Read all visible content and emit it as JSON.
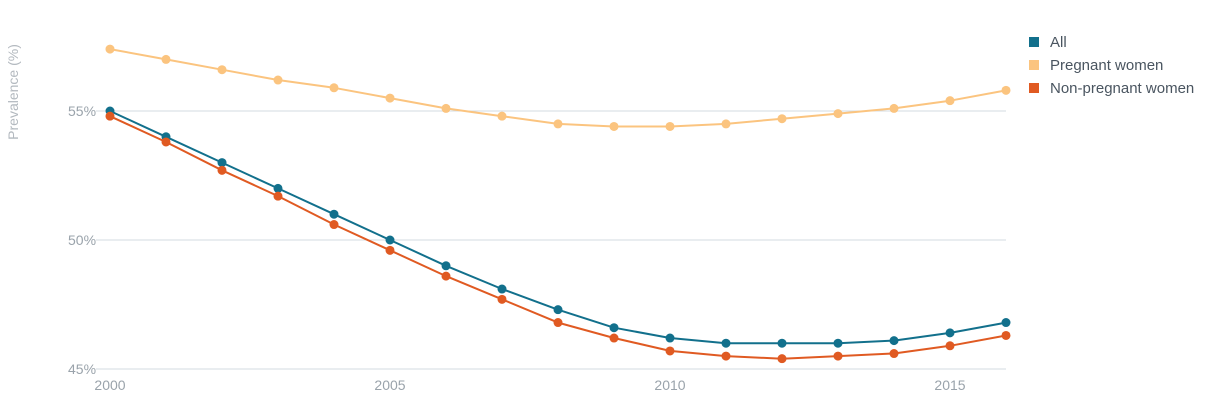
{
  "chart_data": {
    "type": "line",
    "title": "",
    "xlabel": "",
    "ylabel": "Prevalence (%)",
    "xlim": [
      2000,
      2016
    ],
    "ylim": [
      45,
      55
    ],
    "x": [
      2000,
      2001,
      2002,
      2003,
      2004,
      2005,
      2006,
      2007,
      2008,
      2009,
      2010,
      2011,
      2012,
      2013,
      2014,
      2015,
      2016
    ],
    "x_ticks": [
      2000,
      2005,
      2010,
      2015
    ],
    "x_tick_labels": [
      "2000",
      "2005",
      "2010",
      "2015"
    ],
    "y_ticks": [
      45,
      50,
      55
    ],
    "y_tick_labels": [
      "45%",
      "50%",
      "55%"
    ],
    "grid": "horizontal",
    "legend_position": "top-right",
    "series": [
      {
        "name": "All",
        "color": "#12708c",
        "values": [
          55.0,
          54.0,
          53.0,
          52.0,
          51.0,
          50.0,
          49.0,
          48.1,
          47.3,
          46.6,
          46.2,
          46.0,
          46.0,
          46.0,
          46.1,
          46.4,
          46.8
        ]
      },
      {
        "name": "Pregnant women",
        "color": "#fbc47f",
        "values": [
          57.4,
          57.0,
          56.6,
          56.2,
          55.9,
          55.5,
          55.1,
          54.8,
          54.5,
          54.4,
          54.4,
          54.5,
          54.7,
          54.9,
          55.1,
          55.4,
          55.8
        ]
      },
      {
        "name": "Non-pregnant women",
        "color": "#e05a22",
        "values": [
          54.8,
          53.8,
          52.7,
          51.7,
          50.6,
          49.6,
          48.6,
          47.7,
          46.8,
          46.2,
          45.7,
          45.5,
          45.4,
          45.5,
          45.6,
          45.9,
          46.3
        ]
      }
    ]
  }
}
